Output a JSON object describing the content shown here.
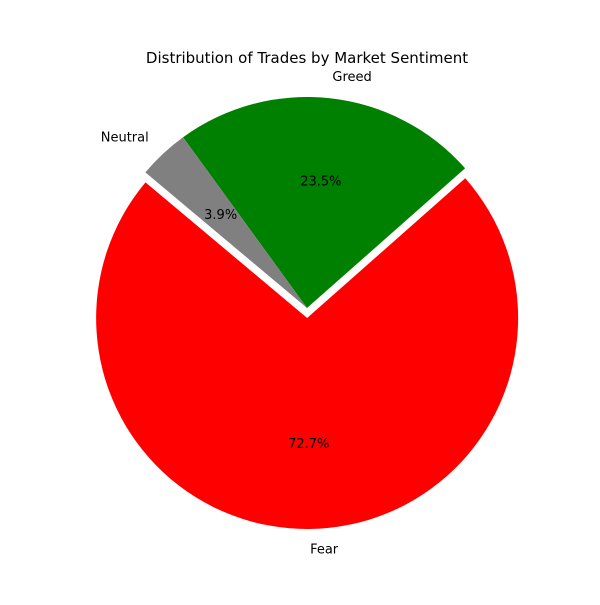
{
  "chart_data": {
    "type": "pie",
    "title": "Distribution of Trades by Market Sentiment",
    "labels": [
      "Fear",
      "Greed",
      "Neutral"
    ],
    "values": [
      72.7,
      23.5,
      3.9
    ],
    "value_labels": [
      "72.7%",
      "23.5%",
      "3.9%"
    ],
    "colors": [
      "#ff0000",
      "#008000",
      "#808080"
    ],
    "exploded": [
      "Fear"
    ],
    "legend": "none"
  }
}
